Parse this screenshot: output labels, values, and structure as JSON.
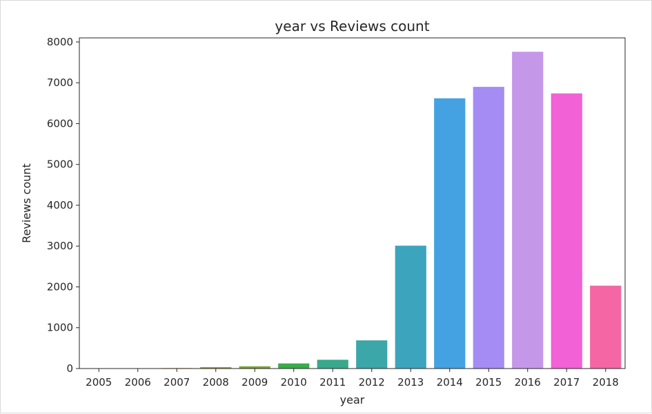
{
  "chart_data": {
    "type": "bar",
    "title": "year vs Reviews count",
    "xlabel": "year",
    "ylabel": "Reviews count",
    "categories": [
      "2005",
      "2006",
      "2007",
      "2008",
      "2009",
      "2010",
      "2011",
      "2012",
      "2013",
      "2014",
      "2015",
      "2016",
      "2017",
      "2018"
    ],
    "values": [
      4,
      8,
      12,
      35,
      55,
      125,
      215,
      690,
      3010,
      6620,
      6900,
      7760,
      6740,
      2030
    ],
    "ylim": [
      0,
      8100
    ],
    "yticks": [
      "0",
      "1000",
      "2000",
      "3000",
      "4000",
      "5000",
      "6000",
      "7000",
      "8000"
    ],
    "colors": [
      "#f77189",
      "#e8853a",
      "#c39532",
      "#a39c31",
      "#7aa731",
      "#38ad4b",
      "#39a98c",
      "#3ba7a8",
      "#3da4be",
      "#44a2e2",
      "#a48cf4",
      "#c597e9",
      "#f261d5",
      "#f466a4"
    ],
    "grid": false,
    "legend": "none"
  }
}
